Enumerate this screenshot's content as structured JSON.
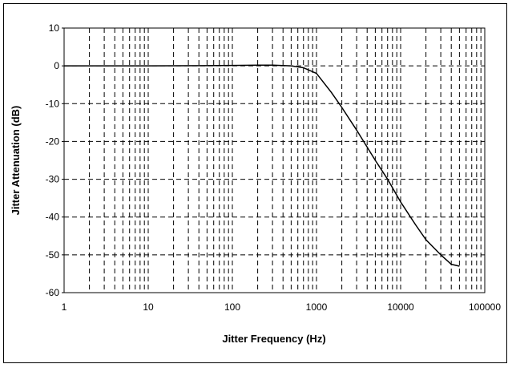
{
  "chart_data": {
    "type": "line",
    "title": "",
    "xlabel": "Jitter Frequency (Hz)",
    "ylabel": "Jitter Attenuation (dB)",
    "x_scale": "log",
    "xlim": [
      1,
      100000
    ],
    "ylim": [
      -60,
      10
    ],
    "x_ticks": [
      1,
      10,
      100,
      1000,
      10000,
      100000
    ],
    "x_tick_labels": [
      "1",
      "10",
      "100",
      "1000",
      "10000",
      "100000"
    ],
    "y_ticks": [
      10,
      0,
      -10,
      -20,
      -30,
      -40,
      -50,
      -60
    ],
    "y_tick_labels": [
      "10",
      "0",
      "-10",
      "-20",
      "-30",
      "-40",
      "-50",
      "-60"
    ],
    "grid": "dashed vertical minor + major, dashed horizontal major",
    "legend": "none",
    "line_color": "#000000",
    "series": [
      {
        "x": [
          1,
          10,
          100,
          200,
          300,
          500,
          700,
          1000,
          1500,
          2000,
          3000,
          5000,
          7000,
          10000,
          15000,
          20000,
          30000,
          40000,
          50000
        ],
        "y": [
          0,
          0,
          0.1,
          0.2,
          0.2,
          0,
          -0.5,
          -2,
          -7,
          -11,
          -17,
          -25,
          -30,
          -36,
          -42,
          -46,
          -50,
          -52.5,
          -53
        ]
      }
    ]
  }
}
